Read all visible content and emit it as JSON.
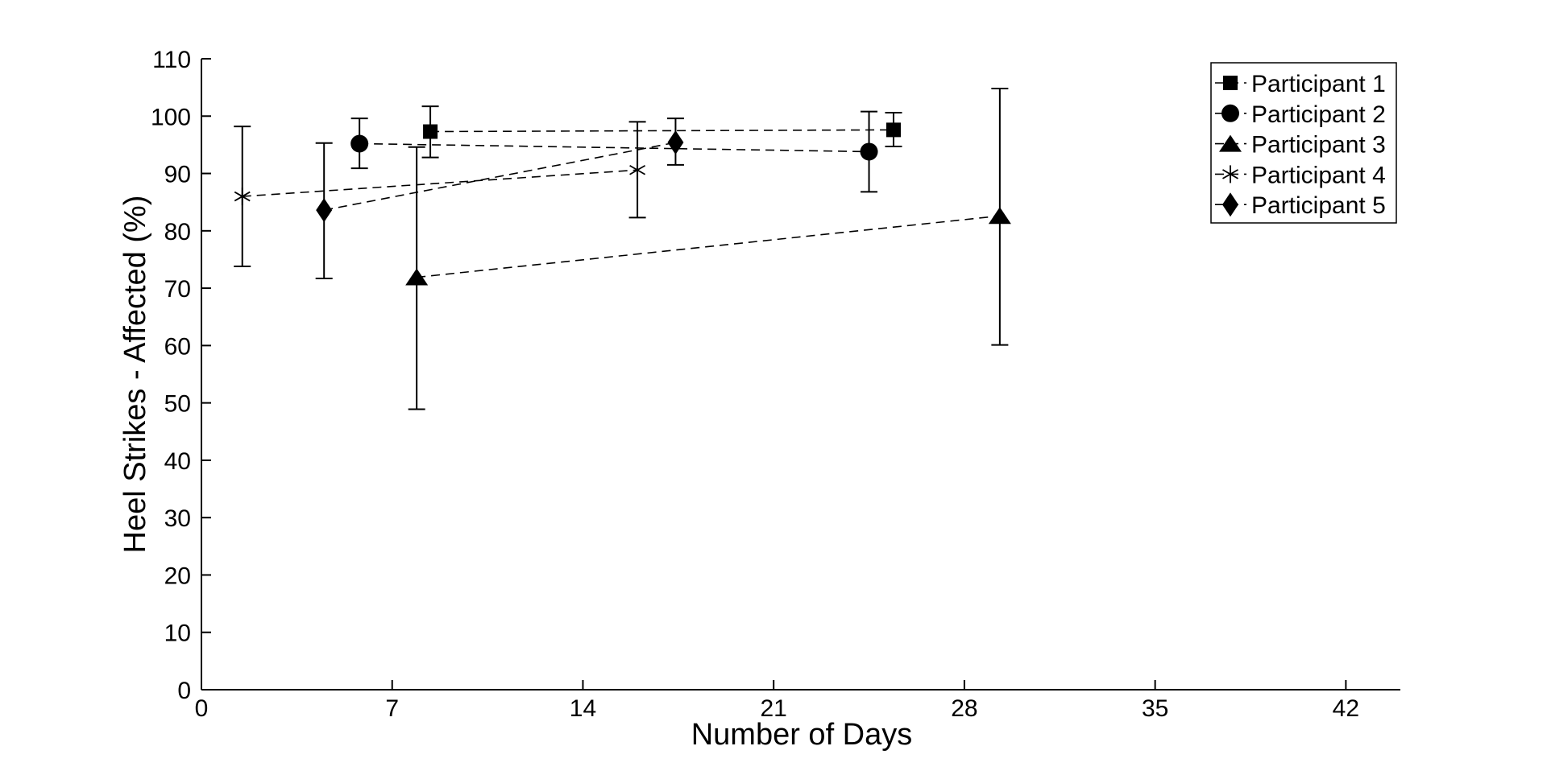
{
  "figure": {
    "background": "#ffffff",
    "foreground": "#000000"
  },
  "chart_data": {
    "type": "line",
    "subtype": "scatter-with-errorbars",
    "title": "",
    "xlabel": "Number of Days",
    "ylabel": "Heel Strikes - Affected (%)",
    "xlim": [
      0,
      44
    ],
    "ylim": [
      0,
      110
    ],
    "xticks": [
      0,
      7,
      14,
      21,
      28,
      35,
      42
    ],
    "yticks": [
      0,
      10,
      20,
      30,
      40,
      50,
      60,
      70,
      80,
      90,
      100,
      110
    ],
    "grid": false,
    "box": false,
    "line_style": "dashed",
    "marker_color": "#000000",
    "legend": {
      "position": "top-right",
      "border": true,
      "entries": [
        "Participant 1",
        "Participant 2",
        "Participant 3",
        "Participant 4",
        "Participant 5"
      ]
    },
    "series": [
      {
        "name": "Participant 1",
        "marker": "square",
        "points": [
          {
            "x": 8.4,
            "y": 97.3,
            "err_low": 92.8,
            "err_high": 101.7
          },
          {
            "x": 25.4,
            "y": 97.6,
            "err_low": 94.7,
            "err_high": 100.6
          }
        ]
      },
      {
        "name": "Participant 2",
        "marker": "circle",
        "points": [
          {
            "x": 5.8,
            "y": 95.2,
            "err_low": 90.9,
            "err_high": 99.6
          },
          {
            "x": 24.5,
            "y": 93.8,
            "err_low": 86.8,
            "err_high": 100.8
          }
        ]
      },
      {
        "name": "Participant 3",
        "marker": "triangle",
        "points": [
          {
            "x": 7.9,
            "y": 71.9,
            "err_low": 48.9,
            "err_high": 94.6
          },
          {
            "x": 29.3,
            "y": 82.6,
            "err_low": 60.1,
            "err_high": 104.8
          }
        ]
      },
      {
        "name": "Participant 4",
        "marker": "asterisk",
        "points": [
          {
            "x": 1.5,
            "y": 86.0,
            "err_low": 73.8,
            "err_high": 98.2
          },
          {
            "x": 16.0,
            "y": 90.6,
            "err_low": 82.3,
            "err_high": 99.0
          }
        ]
      },
      {
        "name": "Participant 5",
        "marker": "diamond",
        "points": [
          {
            "x": 4.5,
            "y": 83.6,
            "err_low": 71.7,
            "err_high": 95.3
          },
          {
            "x": 17.4,
            "y": 95.4,
            "err_low": 91.5,
            "err_high": 99.6
          }
        ]
      }
    ]
  }
}
